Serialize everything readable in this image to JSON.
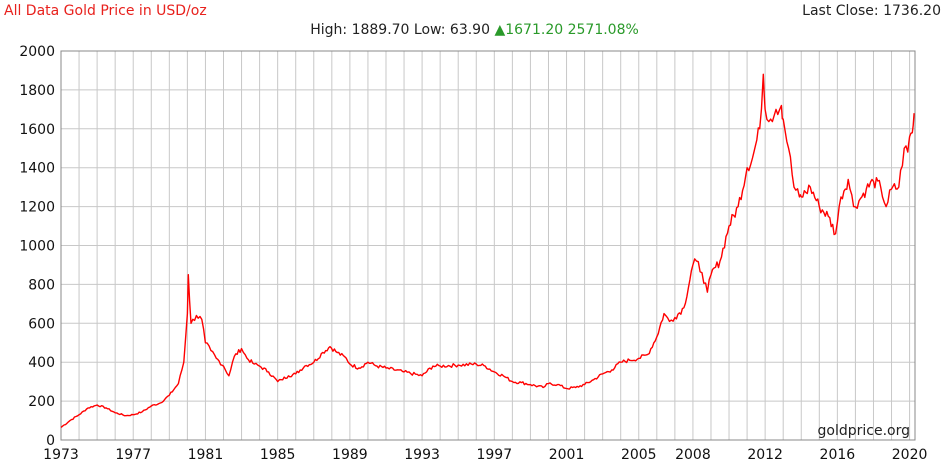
{
  "header": {
    "title": "All Data Gold Price in USD/oz",
    "last_close_label": "Last Close:",
    "last_close_value": "1736.20",
    "high_label": "High:",
    "high_value": "1889.70",
    "low_label": "Low:",
    "low_value": "63.90",
    "change_arrow": "▲",
    "change_value": "1671.20",
    "change_percent": "2571.08%"
  },
  "credit": "goldprice.org",
  "colors": {
    "line": "#ff0000",
    "grid": "#c8c8c8",
    "title": "#e8211d",
    "up": "#2a9a2a"
  },
  "chart_data": {
    "type": "line",
    "title": "All Data Gold Price in USD/oz",
    "xlabel": "",
    "ylabel": "",
    "xlim": [
      1973,
      2020.3
    ],
    "ylim": [
      0,
      2000
    ],
    "grid": true,
    "legend": "none",
    "x_ticks": [
      1973,
      1977,
      1981,
      1985,
      1989,
      1993,
      1997,
      2001,
      2005,
      2008,
      2012,
      2016,
      2020
    ],
    "y_ticks": [
      0,
      200,
      400,
      600,
      800,
      1000,
      1200,
      1400,
      1600,
      1800,
      2000
    ],
    "series": [
      {
        "values_x": [
          1973.0,
          1973.5,
          1974.0,
          1974.5,
          1975.0,
          1975.5,
          1976.0,
          1976.6,
          1977.0,
          1977.5,
          1978.0,
          1978.5,
          1979.0,
          1979.5,
          1979.8,
          1980.0,
          1980.05,
          1980.2,
          1980.5,
          1980.8,
          1981.0,
          1981.3,
          1981.6,
          1982.0,
          1982.3,
          1982.6,
          1983.0,
          1983.3,
          1983.7,
          1984.0,
          1984.5,
          1985.0,
          1985.2,
          1985.6,
          1986.0,
          1986.5,
          1987.0,
          1987.5,
          1987.9,
          1988.3,
          1988.8,
          1989.0,
          1989.5,
          1990.0,
          1990.5,
          1991.0,
          1992.0,
          1993.0,
          1993.6,
          1994.0,
          1995.0,
          1996.0,
          1996.5,
          1997.0,
          1997.5,
          1998.0,
          1998.5,
          1999.0,
          1999.7,
          2000.0,
          2000.5,
          2001.0,
          2001.5,
          2002.0,
          2002.5,
          2003.0,
          2003.5,
          2004.0,
          2004.5,
          2005.0,
          2005.5,
          2006.0,
          2006.4,
          2006.7,
          2007.0,
          2007.5,
          2008.0,
          2008.2,
          2008.5,
          2008.8,
          2009.0,
          2009.5,
          2010.0,
          2010.5,
          2011.0,
          2011.3,
          2011.7,
          2011.9,
          2012.0,
          2012.3,
          2012.6,
          2012.9,
          2013.0,
          2013.3,
          2013.6,
          2013.9,
          2014.0,
          2014.5,
          2015.0,
          2015.5,
          2015.9,
          2016.2,
          2016.6,
          2016.9,
          2017.2,
          2017.6,
          2018.0,
          2018.4,
          2018.7,
          2019.0,
          2019.4,
          2019.7,
          2019.9,
          2020.0,
          2020.15,
          2020.25
        ],
        "values_y": [
          65,
          100,
          130,
          165,
          180,
          165,
          140,
          125,
          130,
          145,
          175,
          190,
          230,
          290,
          400,
          650,
          850,
          600,
          640,
          620,
          500,
          460,
          420,
          380,
          330,
          430,
          470,
          420,
          390,
          380,
          350,
          300,
          310,
          330,
          340,
          380,
          400,
          450,
          480,
          450,
          420,
          390,
          370,
          400,
          380,
          370,
          350,
          330,
          380,
          380,
          385,
          390,
          380,
          350,
          330,
          300,
          295,
          285,
          270,
          290,
          285,
          265,
          270,
          285,
          310,
          340,
          360,
          400,
          410,
          420,
          440,
          530,
          650,
          610,
          630,
          680,
          900,
          920,
          860,
          760,
          850,
          920,
          1100,
          1200,
          1400,
          1450,
          1600,
          1880,
          1700,
          1650,
          1700,
          1720,
          1650,
          1500,
          1300,
          1250,
          1250,
          1300,
          1200,
          1150,
          1060,
          1250,
          1340,
          1200,
          1230,
          1290,
          1330,
          1300,
          1200,
          1290,
          1300,
          1500,
          1480,
          1560,
          1580,
          1680
        ]
      }
    ]
  }
}
